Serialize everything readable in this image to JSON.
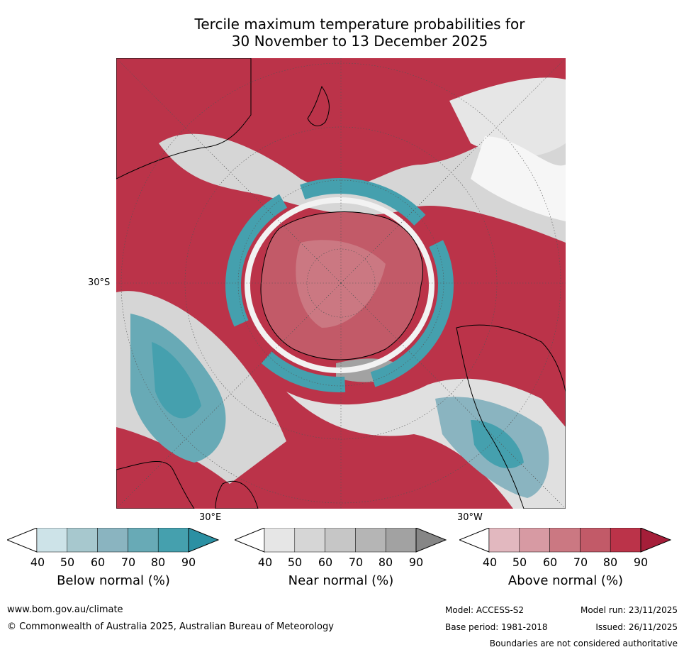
{
  "title": {
    "line1": "Tercile maximum temperature probabilities for",
    "line2": "30 November to 13 December 2025"
  },
  "map": {
    "label_lat": "30°S",
    "label_lon_east": "30°E",
    "label_lon_west": "30°W",
    "colors": {
      "below": [
        "#cde3e8",
        "#a7c8ce",
        "#8ab4c0",
        "#68aab6",
        "#45a0ae",
        "#2b90a3"
      ],
      "near": [
        "#e6e6e6",
        "#d6d6d6",
        "#c6c6c6",
        "#b5b5b5",
        "#a2a2a2",
        "#868686"
      ],
      "above": [
        "#e2b8bf",
        "#d79aa3",
        "#cb7882",
        "#c25a68",
        "#bb3349",
        "#a51e39"
      ]
    }
  },
  "colorbars": [
    {
      "key": "below",
      "label": "Below normal (%)",
      "ticks": [
        "40",
        "50",
        "60",
        "70",
        "80",
        "90"
      ]
    },
    {
      "key": "near",
      "label": "Near normal (%)",
      "ticks": [
        "40",
        "50",
        "60",
        "70",
        "80",
        "90"
      ]
    },
    {
      "key": "above",
      "label": "Above normal (%)",
      "ticks": [
        "40",
        "50",
        "60",
        "70",
        "80",
        "90"
      ]
    }
  ],
  "footer": {
    "website": "www.bom.gov.au/climate",
    "copyright": "© Commonwealth of Australia 2025, Australian Bureau of Meteorology",
    "model": "Model: ACCESS-S2",
    "model_run": "Model run: 23/11/2025",
    "base_period": "Base period: 1981-2018",
    "issued": "Issued: 26/11/2025",
    "boundaries": "Boundaries are not considered authoritative"
  }
}
